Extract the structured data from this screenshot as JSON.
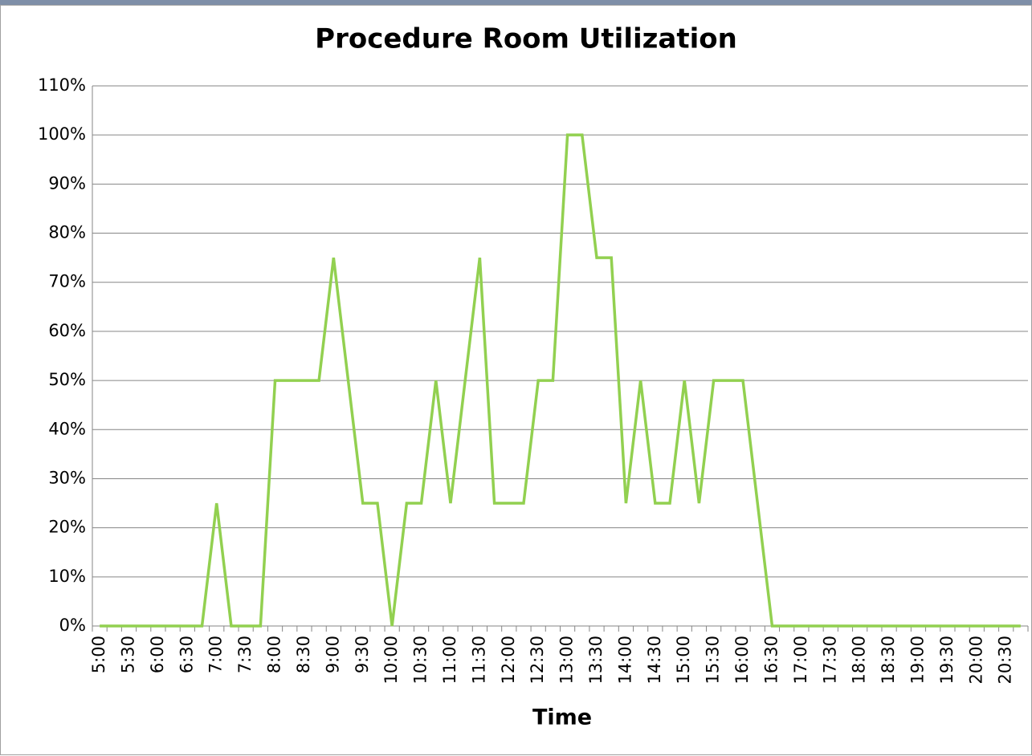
{
  "chart_data": {
    "type": "line",
    "title": "Procedure Room Utilization",
    "x_label": "Time",
    "categories": [
      "5:00",
      null,
      "5:30",
      null,
      "6:00",
      null,
      "6:30",
      null,
      "7:00",
      null,
      "7:30",
      null,
      "8:00",
      null,
      "8:30",
      null,
      "9:00",
      null,
      "9:30",
      null,
      "10:00",
      null,
      "10:30",
      null,
      "11:00",
      null,
      "11:30",
      null,
      "12:00",
      null,
      "12:30",
      null,
      "13:00",
      null,
      "13:30",
      null,
      "14:00",
      null,
      "14:30",
      null,
      "15:00",
      null,
      "15:30",
      null,
      "16:00",
      null,
      "16:30",
      null,
      "17:00",
      null,
      "17:30",
      null,
      "18:00",
      null,
      "18:30",
      null,
      "19:00",
      null,
      "19:30",
      null,
      "20:00",
      null,
      "20:30",
      null
    ],
    "values": [
      0,
      0,
      0,
      0,
      0,
      0,
      0,
      0,
      25,
      0,
      0,
      0,
      50,
      50,
      50,
      50,
      75,
      50,
      25,
      25,
      0,
      25,
      25,
      50,
      25,
      50,
      75,
      25,
      25,
      25,
      50,
      50,
      100,
      100,
      75,
      75,
      25,
      50,
      25,
      25,
      50,
      25,
      50,
      50,
      50,
      25,
      0,
      0,
      0,
      0,
      0,
      0,
      0,
      0,
      0,
      0,
      0,
      0,
      0,
      0,
      0,
      0,
      0,
      0
    ],
    "color": "#92d050",
    "ylim": [
      0,
      110
    ],
    "yticks": [
      {
        "value": 0,
        "label": "0%"
      },
      {
        "value": 10,
        "label": "10%"
      },
      {
        "value": 20,
        "label": "20%"
      },
      {
        "value": 30,
        "label": "30%"
      },
      {
        "value": 40,
        "label": "40%"
      },
      {
        "value": 50,
        "label": "50%"
      },
      {
        "value": 60,
        "label": "60%"
      },
      {
        "value": 70,
        "label": "70%"
      },
      {
        "value": 80,
        "label": "80%"
      },
      {
        "value": 90,
        "label": "90%"
      },
      {
        "value": 100,
        "label": "100%"
      },
      {
        "value": 110,
        "label": "110%"
      }
    ],
    "grid": true
  }
}
